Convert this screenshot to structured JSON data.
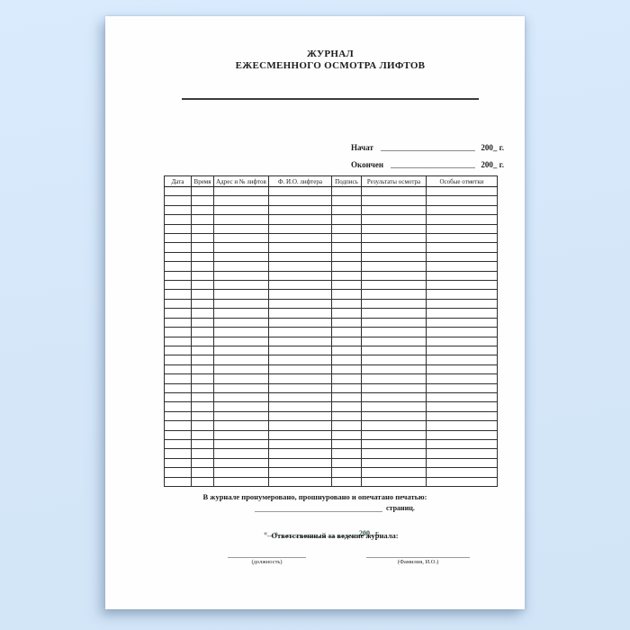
{
  "document": {
    "title_line1": "ЖУРНАЛ",
    "title_line2": "ЕЖЕСМЕННОГО ОСМОТРА ЛИФТОВ",
    "started_label": "Начат",
    "finished_label": "Окончен",
    "year_blank": "200_ г."
  },
  "table": {
    "headers": [
      "Дата",
      "Время",
      "Адрес и № лифтов",
      "Ф. И.О. лифтера",
      "Подпись",
      "Результаты осмотра",
      "Особые отметки"
    ],
    "empty_row_count": 32
  },
  "footer": {
    "certification_line": "В журнале пронумеровано, прошнуровано и опечатано печатью:",
    "pages_label": "страниц.",
    "date_opening_quote": "«__»",
    "date_year": "200_ г.",
    "responsible_label": "Ответственный за ведение журнала:",
    "position_caption": "(должность)",
    "name_caption": "(Фамилия, И.О.)"
  },
  "colors": {
    "background_top": "#d9ebfc",
    "background_bottom": "#d2e5f7",
    "paper": "#fefefe",
    "ink": "#1c1c1c",
    "table_border": "#2f2f2f",
    "date_dash_accent": "#3a6b5c"
  }
}
